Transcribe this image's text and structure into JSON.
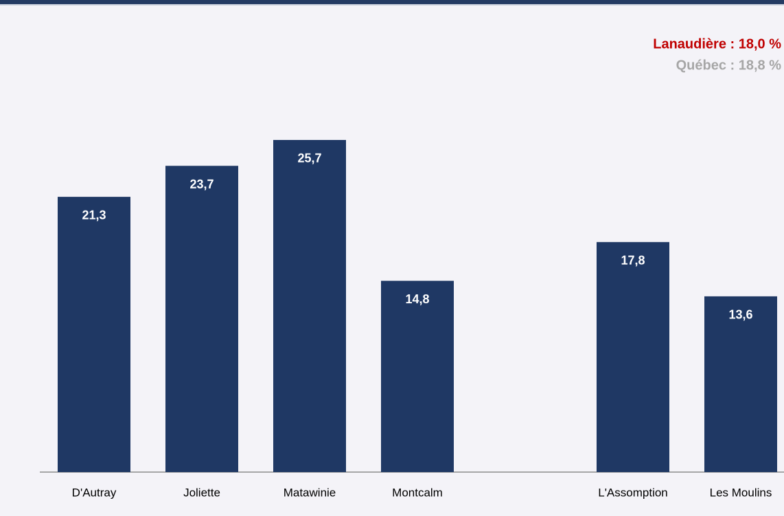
{
  "chart_data": {
    "type": "bar",
    "annotations": [
      {
        "text": "Lanaudière : 18,0 %",
        "color": "#c00000"
      },
      {
        "text": "Québec : 18,8 %",
        "color": "#a6a6a6"
      }
    ],
    "categories": [
      "D'Autray",
      "Joliette",
      "Matawinie",
      "Montcalm",
      null,
      "L'Assomption",
      "Les Moulins"
    ],
    "values": [
      21.3,
      23.7,
      25.7,
      14.8,
      null,
      17.8,
      13.6
    ],
    "value_labels": [
      "21,3",
      "23,7",
      "25,7",
      "14,8",
      null,
      "17,8",
      "13,6"
    ],
    "color": "#1f3864",
    "ylim": [
      0,
      30
    ]
  }
}
